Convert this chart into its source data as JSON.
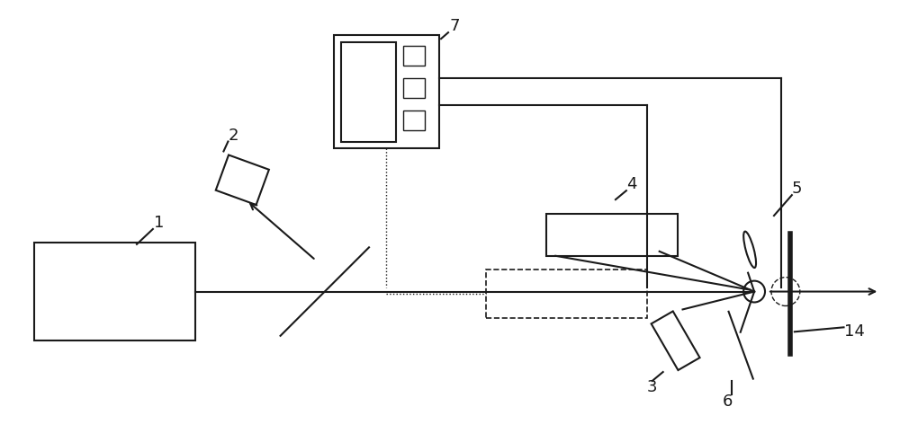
{
  "bg_color": "#ffffff",
  "line_color": "#1a1a1a",
  "fig_width": 10.0,
  "fig_height": 4.92,
  "dpi": 100
}
